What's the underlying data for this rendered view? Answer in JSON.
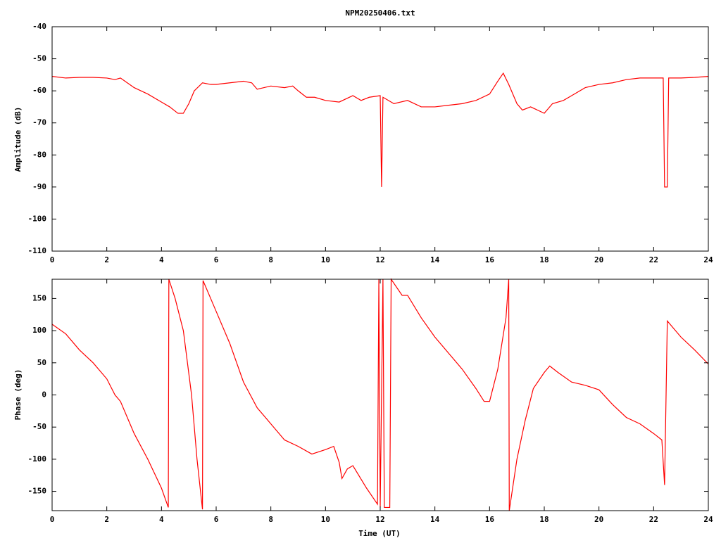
{
  "chart_data": [
    {
      "type": "line",
      "title": "NPM20250406.txt",
      "ylabel": "Amplitude (dB)",
      "color": "#ff0000",
      "xlim": [
        0,
        24
      ],
      "xticks": [
        0,
        2,
        4,
        6,
        8,
        10,
        12,
        14,
        16,
        18,
        20,
        22,
        24
      ],
      "ylim": [
        -110,
        -40
      ],
      "yticks": [
        -110,
        -100,
        -90,
        -80,
        -70,
        -60,
        -50,
        -40
      ],
      "x": [
        0,
        0.5,
        1,
        1.5,
        2,
        2.3,
        2.5,
        3,
        3.5,
        4,
        4.3,
        4.6,
        4.8,
        5,
        5.2,
        5.5,
        5.8,
        6,
        6.5,
        7,
        7.3,
        7.5,
        8,
        8.5,
        8.8,
        9,
        9.3,
        9.6,
        10,
        10.5,
        11,
        11.3,
        11.6,
        12,
        12.05,
        12.1,
        12.5,
        13,
        13.5,
        14,
        14.5,
        15,
        15.5,
        16,
        16.3,
        16.5,
        16.7,
        17,
        17.2,
        17.5,
        18,
        18.3,
        18.7,
        19,
        19.5,
        20,
        20.5,
        21,
        21.5,
        22,
        22.35,
        22.4,
        22.5,
        22.55,
        23,
        23.5,
        24
      ],
      "values": [
        -55.5,
        -56,
        -55.8,
        -55.8,
        -56,
        -56.5,
        -56,
        -59,
        -61,
        -63.5,
        -65,
        -67,
        -67,
        -64,
        -60,
        -57.5,
        -58,
        -58,
        -57.5,
        -57,
        -57.5,
        -59.5,
        -58.5,
        -59,
        -58.5,
        -60,
        -62,
        -62,
        -63,
        -63.5,
        -61.5,
        -63,
        -62,
        -61.5,
        -90,
        -62,
        -64,
        -63,
        -65,
        -65,
        -64.5,
        -64,
        -63,
        -61,
        -57,
        -54.5,
        -58,
        -64,
        -66,
        -65,
        -67,
        -64,
        -63,
        -61.5,
        -59,
        -58,
        -57.5,
        -56.5,
        -56,
        -56,
        -56,
        -90,
        -90,
        -56,
        -56,
        -55.8,
        -55.5
      ]
    },
    {
      "type": "line",
      "ylabel": "Phase (deg)",
      "xlabel": "Time (UT)",
      "color": "#ff0000",
      "xlim": [
        0,
        24
      ],
      "xticks": [
        0,
        2,
        4,
        6,
        8,
        10,
        12,
        14,
        16,
        18,
        20,
        22,
        24
      ],
      "ylim": [
        -180,
        180
      ],
      "yticks": [
        -150,
        -100,
        -50,
        0,
        50,
        100,
        150
      ],
      "x": [
        0,
        0.5,
        1,
        1.5,
        2,
        2.3,
        2.5,
        3,
        3.5,
        4,
        4.25,
        4.27,
        4.5,
        4.8,
        5.1,
        5.3,
        5.5,
        5.52,
        6,
        6.5,
        7,
        7.5,
        8,
        8.5,
        9,
        9.5,
        10,
        10.3,
        10.5,
        10.6,
        10.8,
        11,
        11.5,
        11.9,
        11.95,
        12,
        12.1,
        12.15,
        12.35,
        12.4,
        12.8,
        13,
        13.5,
        14,
        14.5,
        15,
        15.5,
        15.8,
        16,
        16.3,
        16.6,
        16.7,
        16.72,
        17,
        17.3,
        17.6,
        18,
        18.2,
        18.5,
        19,
        19.5,
        20,
        20.5,
        21,
        21.5,
        22,
        22.3,
        22.4,
        22.5,
        23,
        23.5,
        24
      ],
      "values": [
        110,
        95,
        70,
        50,
        25,
        0,
        -10,
        -60,
        -100,
        -145,
        -175,
        180,
        150,
        100,
        0,
        -100,
        -178,
        178,
        130,
        80,
        20,
        -20,
        -45,
        -70,
        -80,
        -92,
        -85,
        -80,
        -105,
        -130,
        -115,
        -110,
        -145,
        -170,
        180,
        -175,
        180,
        -175,
        -175,
        180,
        155,
        155,
        120,
        90,
        65,
        40,
        10,
        -10,
        -10,
        40,
        120,
        180,
        -180,
        -100,
        -40,
        10,
        35,
        45,
        35,
        20,
        15,
        8,
        -15,
        -35,
        -45,
        -60,
        -70,
        -140,
        115,
        90,
        70,
        48
      ]
    }
  ]
}
